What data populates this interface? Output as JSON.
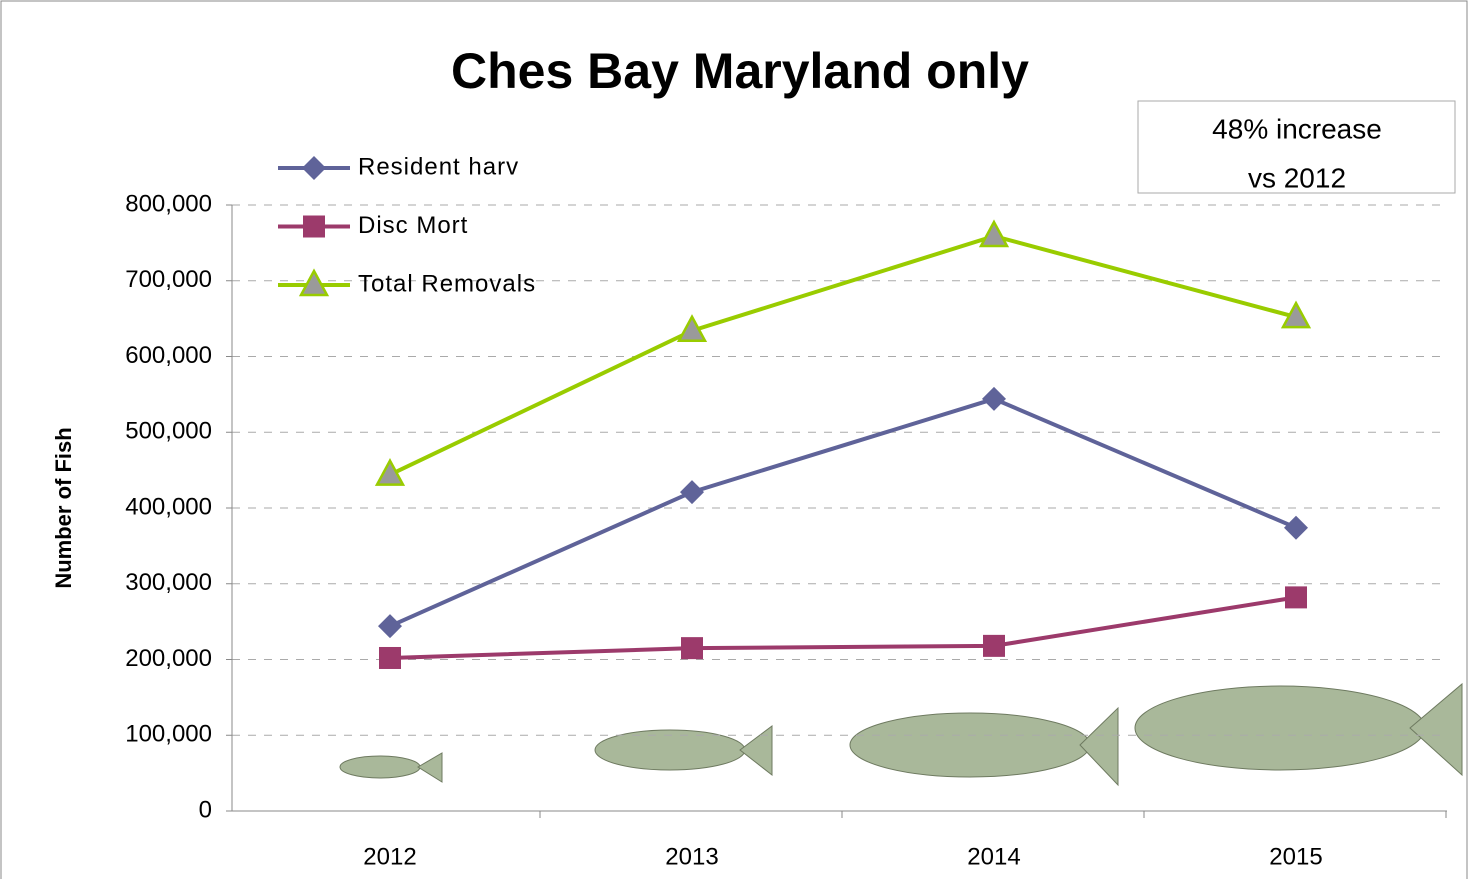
{
  "chart_data": {
    "type": "line",
    "title": "Ches Bay Maryland only",
    "y_label": "Number of Fish",
    "annotation": [
      "48% increase",
      "vs 2012"
    ],
    "categories": [
      "2012",
      "2013",
      "2014",
      "2015"
    ],
    "series": [
      {
        "name": "Resident harv",
        "color": "#5f6399",
        "marker": "diamond",
        "values": [
          244000,
          421000,
          544000,
          374000
        ]
      },
      {
        "name": "Disc Mort",
        "color": "#9c3a6b",
        "marker": "square",
        "values": [
          202000,
          215000,
          218000,
          282000
        ]
      },
      {
        "name": "Total Removals",
        "color": "#99cc00",
        "marker": "triangle",
        "values": [
          444000,
          634000,
          759000,
          652000
        ]
      }
    ],
    "ylim": [
      0,
      800000
    ],
    "yticks": [
      0,
      {
        "value": 100000,
        "label": "100,000"
      },
      {
        "value": 200000,
        "label": "200,000"
      },
      {
        "value": 300000,
        "label": "300,000"
      },
      {
        "value": 400000,
        "label": "400,000"
      },
      {
        "value": 500000,
        "label": "500,000"
      },
      {
        "value": 600000,
        "label": "600,000"
      },
      {
        "value": 700000,
        "label": "700,000"
      },
      {
        "value": 800000,
        "label": "800,000"
      }
    ],
    "grid": true,
    "legend": "upper left"
  }
}
